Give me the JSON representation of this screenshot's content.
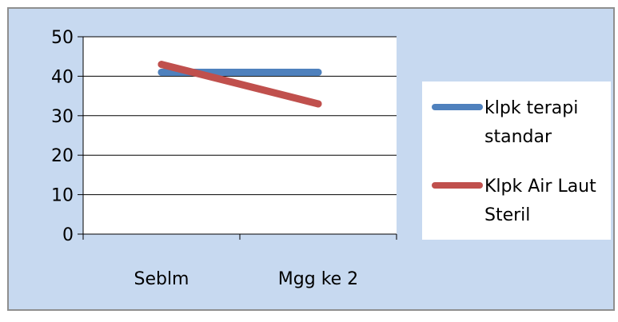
{
  "chart_data": {
    "type": "line",
    "categories": [
      "Seblm",
      "Mgg ke 2"
    ],
    "series": [
      {
        "name_lines": [
          "klpk terapi",
          "standar"
        ],
        "values": [
          41,
          41
        ],
        "color": "#4f81bd"
      },
      {
        "name_lines": [
          "Klpk Air Laut",
          "Steril"
        ],
        "values": [
          43,
          33
        ],
        "color": "#c0504d"
      }
    ],
    "yticks": [
      0,
      10,
      20,
      30,
      40,
      50
    ],
    "ylim": [
      0,
      50
    ],
    "grid": true,
    "legend_position": "right"
  },
  "colors": {
    "background": "#c7d9f0",
    "plot_background": "#ffffff",
    "gridline": "#000000",
    "border": "#8f8f8f"
  }
}
